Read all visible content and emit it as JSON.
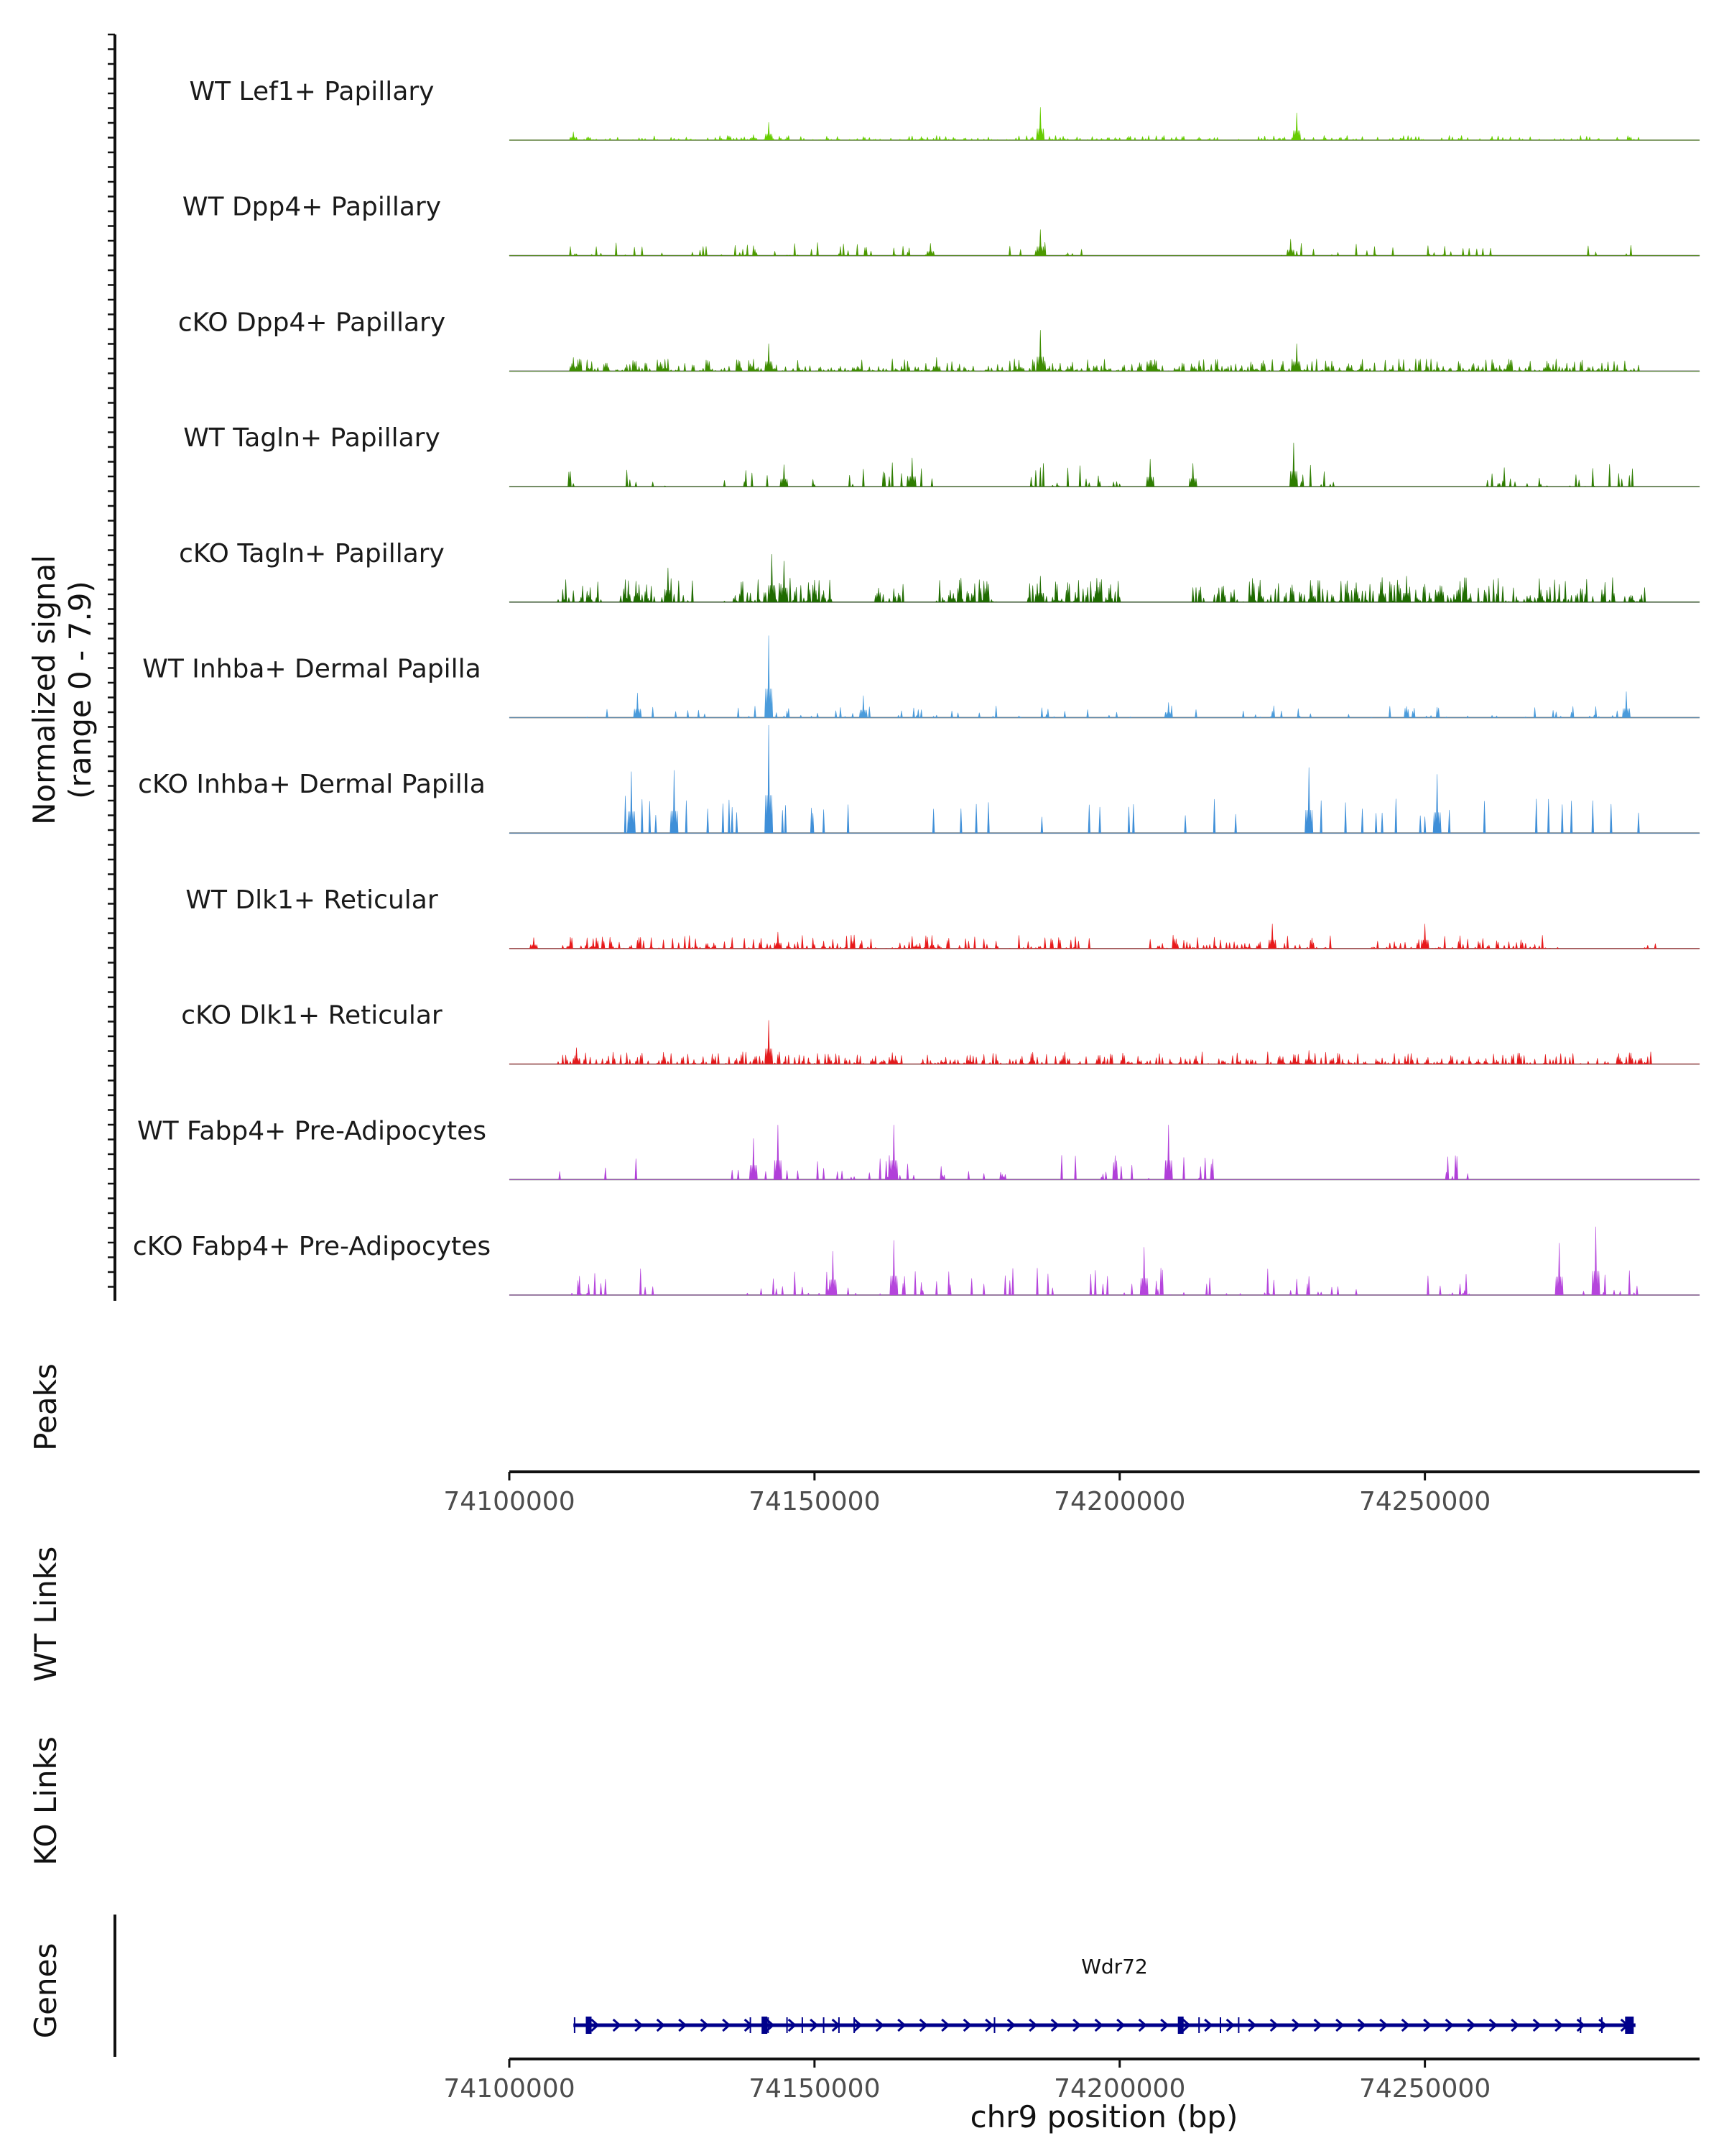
{
  "chart_data": {
    "type": "coverage-track",
    "chromosome": "chr9",
    "xlim": [
      74100000,
      74295000
    ],
    "signal_axis_label": "Normalized signal",
    "signal_axis_range_label": "(range 0 - 7.9)",
    "ylim": [
      0,
      7.9
    ],
    "xlabel": "chr9 position (bp)",
    "x_ticks": [
      {
        "value": 74100000,
        "label": "74100000"
      },
      {
        "value": 74150000,
        "label": "74150000"
      },
      {
        "value": 74200000,
        "label": "74200000"
      },
      {
        "value": 74250000,
        "label": "74250000"
      }
    ],
    "tracks": [
      {
        "name": "WT Lef1+ Papillary",
        "color": "#66CC00",
        "style": "dense",
        "density": 0.5,
        "base": 0.35,
        "region": [
          74110000,
          74285000
        ],
        "spans": [
          [
            74110000,
            74285000
          ]
        ],
        "peaks": [
          [
            74187000,
            2.4
          ],
          [
            74229000,
            2.0
          ],
          [
            74142500,
            1.3
          ],
          [
            74110500,
            0.6
          ],
          [
            74140000,
            0.4
          ]
        ]
      },
      {
        "name": "WT Dpp4+ Papillary",
        "color": "#4C9900",
        "style": "sparse",
        "density": 0.55,
        "base": 1.0,
        "region": [
          74110000,
          74285000
        ],
        "spans": [
          [
            74110000,
            74125000
          ],
          [
            74130000,
            74170000
          ],
          [
            74182000,
            74200000
          ],
          [
            74225000,
            74245000
          ],
          [
            74250000,
            74262000
          ],
          [
            74275000,
            74284000
          ]
        ],
        "peaks": [
          [
            74187000,
            1.9
          ],
          [
            74228000,
            1.2
          ],
          [
            74169000,
            0.9
          ]
        ]
      },
      {
        "name": "cKO Dpp4+ Papillary",
        "color": "#3D8C00",
        "style": "dense",
        "density": 0.7,
        "base": 0.9,
        "region": [
          74110000,
          74285000
        ],
        "spans": [
          [
            74110000,
            74285000
          ]
        ],
        "peaks": [
          [
            74187000,
            3.0
          ],
          [
            74229000,
            2.0
          ],
          [
            74142500,
            2.0
          ],
          [
            74110500,
            1.0
          ],
          [
            74170000,
            1.0
          ]
        ]
      },
      {
        "name": "WT Tagln+ Papillary",
        "color": "#2E7D00",
        "style": "sparse",
        "density": 0.6,
        "base": 1.8,
        "region": [
          74108000,
          74285000
        ],
        "spans": [
          [
            74108000,
            74112000
          ],
          [
            74119000,
            74127000
          ],
          [
            74135000,
            74150000
          ],
          [
            74155000,
            74170000
          ],
          [
            74185000,
            74200000
          ],
          [
            74228000,
            74237000
          ],
          [
            74260000,
            74285000
          ]
        ],
        "peaks": [
          [
            74228500,
            3.2
          ],
          [
            74166000,
            2.1
          ],
          [
            74205000,
            2.0
          ],
          [
            74212000,
            1.7
          ],
          [
            74145000,
            1.6
          ]
        ]
      },
      {
        "name": "cKO Tagln+ Papillary",
        "color": "#1F6B00",
        "style": "dense",
        "density": 0.75,
        "base": 1.8,
        "region": [
          74108000,
          74286000
        ],
        "spans": [
          [
            74108000,
            74115000
          ],
          [
            74118000,
            74130000
          ],
          [
            74135000,
            74153000
          ],
          [
            74160000,
            74165000
          ],
          [
            74170000,
            74180000
          ],
          [
            74185000,
            74200000
          ],
          [
            74212000,
            74286000
          ]
        ],
        "peaks": [
          [
            74143000,
            3.5
          ],
          [
            74145000,
            3.0
          ],
          [
            74126000,
            2.5
          ],
          [
            74187000,
            1.9
          ],
          [
            74243000,
            1.8
          ],
          [
            74247000,
            1.9
          ]
        ]
      },
      {
        "name": "WT Inhba+ Dermal Papilla",
        "color": "#4A9BDB",
        "style": "sparse",
        "density": 0.45,
        "base": 0.9,
        "region": [
          74108000,
          74285000
        ],
        "spans": [
          [
            74108000,
            74285000
          ]
        ],
        "peaks": [
          [
            74142500,
            6.0
          ],
          [
            74121000,
            1.8
          ],
          [
            74158000,
            1.6
          ],
          [
            74283000,
            1.9
          ],
          [
            74208000,
            1.1
          ]
        ]
      },
      {
        "name": "cKO Inhba+ Dermal Papilla",
        "color": "#3F8FD8",
        "style": "spikes",
        "density": 0.55,
        "base": 2.8,
        "region": [
          74115000,
          74285000
        ],
        "spans": [
          [
            74115000,
            74160000
          ],
          [
            74165000,
            74220000
          ],
          [
            74225000,
            74260000
          ],
          [
            74265000,
            74285000
          ]
        ],
        "peaks": [
          [
            74142500,
            7.9
          ],
          [
            74120000,
            4.5
          ],
          [
            74127000,
            4.6
          ],
          [
            74231000,
            4.8
          ],
          [
            74252000,
            4.3
          ]
        ]
      },
      {
        "name": "WT Dlk1+ Reticular",
        "color": "#E8191A",
        "style": "dense",
        "density": 0.55,
        "base": 1.0,
        "region": [
          74108000,
          74288000
        ],
        "spans": [
          [
            74108000,
            74195000
          ],
          [
            74205000,
            74235000
          ],
          [
            74241000,
            74272000
          ],
          [
            74286000,
            74288000
          ]
        ],
        "peaks": [
          [
            74225000,
            1.8
          ],
          [
            74250000,
            1.8
          ],
          [
            74144000,
            1.2
          ],
          [
            74104000,
            0.8
          ]
        ]
      },
      {
        "name": "cKO Dlk1+ Reticular",
        "color": "#E31A1C",
        "style": "dense",
        "density": 0.7,
        "base": 0.9,
        "region": [
          74108000,
          74287000
        ],
        "spans": [
          [
            74108000,
            74287000
          ]
        ],
        "peaks": [
          [
            74142500,
            3.2
          ],
          [
            74111000,
            1.2
          ],
          [
            74231000,
            1.0
          ]
        ]
      },
      {
        "name": "WT Fabp4+ Pre-Adipocytes",
        "color": "#B13FD9",
        "style": "sparse",
        "density": 0.5,
        "base": 1.8,
        "region": [
          74108000,
          74265000
        ],
        "spans": [
          [
            74108000,
            74110000
          ],
          [
            74114000,
            74116000
          ],
          [
            74120000,
            74122000
          ],
          [
            74127000,
            74128000
          ],
          [
            74135000,
            74172000
          ],
          [
            74175000,
            74182000
          ],
          [
            74187000,
            74205000
          ],
          [
            74210000,
            74218000
          ],
          [
            74240000,
            74242000
          ],
          [
            74253000,
            74258000
          ]
        ],
        "peaks": [
          [
            74163000,
            4.0
          ],
          [
            74144000,
            4.0
          ],
          [
            74208000,
            4.0
          ],
          [
            74140000,
            3.0
          ]
        ]
      },
      {
        "name": "cKO Fabp4+ Pre-Adipocytes",
        "color": "#B545DC",
        "style": "sparse",
        "density": 0.6,
        "base": 2.0,
        "region": [
          74108000,
          74286000
        ],
        "spans": [
          [
            74108000,
            74116000
          ],
          [
            74121000,
            74124000
          ],
          [
            74132000,
            74134000
          ],
          [
            74139000,
            74150000
          ],
          [
            74150000,
            74200000
          ],
          [
            74200000,
            74240000
          ],
          [
            74250000,
            74262000
          ],
          [
            74272000,
            74286000
          ]
        ],
        "peaks": [
          [
            74278000,
            5.0
          ],
          [
            74163000,
            4.0
          ],
          [
            74204000,
            3.5
          ],
          [
            74272000,
            3.8
          ],
          [
            74153000,
            3.2
          ]
        ]
      }
    ],
    "panels": {
      "peaks_label": "Peaks",
      "wt_links_label": "WT Links",
      "ko_links_label": "KO Links",
      "genes_label": "Genes"
    },
    "gene": {
      "name": "Wdr72",
      "strand": "+",
      "color": "#00008B",
      "start": 74110500,
      "end": 74284500,
      "exons": [
        74110700,
        74113000,
        74139500,
        74141800,
        74142400,
        74145500,
        74148000,
        74151500,
        74154000,
        74156500,
        74179500,
        74210000,
        74213000,
        74216500,
        74219500,
        74275500,
        74279000,
        74283500
      ]
    }
  }
}
